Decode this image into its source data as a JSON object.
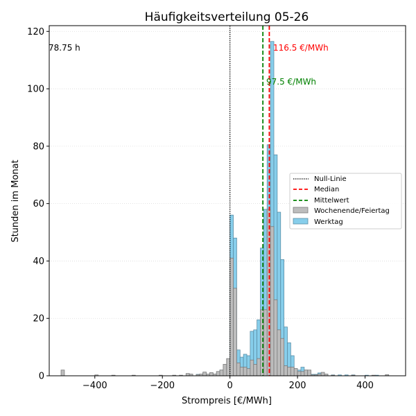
{
  "chart_data": {
    "type": "bar",
    "title": "Häufigkeitsverteilung 05-26",
    "xlabel": "Strompreis [€/MWh]",
    "ylabel": "Stunden im Monat",
    "xlim": [
      -535,
      520
    ],
    "ylim": [
      0,
      122
    ],
    "xticks": [
      -400,
      -200,
      0,
      200,
      400
    ],
    "yticks": [
      0,
      20,
      40,
      60,
      80,
      100,
      120
    ],
    "grid": "horizontal-dotted",
    "bin_width": 10,
    "stacking": "overlapping",
    "legend_position": "center-right",
    "colors": {
      "werktag": "#87ceeb",
      "wochenende": "#bdbdbd",
      "median": "#ff0000",
      "mittelwert": "#008000",
      "null_linie": "#000000"
    },
    "annotations": {
      "negative_hours": "78.75 h",
      "median_label": "116.5 €/MWh",
      "mean_label": "97.5 €/MWh"
    },
    "reference_lines": {
      "null": 0,
      "median": 116.5,
      "mean": 97.5
    },
    "legend": {
      "null_linie": "Null-Linie",
      "median": "Median",
      "mittelwert": "Mittelwert",
      "wochenende": "Wochenende/Feiertag",
      "werktag": "Werktag"
    },
    "series": [
      {
        "name": "Werktag",
        "bins": [
          [
            -130,
            0.5
          ],
          [
            -120,
            0.5
          ],
          [
            -100,
            0.5
          ],
          [
            -90,
            0.5
          ],
          [
            -80,
            1
          ],
          [
            -70,
            0.5
          ],
          [
            -60,
            1
          ],
          [
            -50,
            0.5
          ],
          [
            -40,
            1
          ],
          [
            -30,
            2
          ],
          [
            -20,
            2
          ],
          [
            -10,
            3
          ],
          [
            0,
            56
          ],
          [
            10,
            48
          ],
          [
            20,
            9
          ],
          [
            30,
            6.5
          ],
          [
            40,
            7.5
          ],
          [
            50,
            7
          ],
          [
            60,
            15.5
          ],
          [
            70,
            16
          ],
          [
            80,
            19.5
          ],
          [
            90,
            44.5
          ],
          [
            100,
            58
          ],
          [
            110,
            80.5
          ],
          [
            120,
            116.5
          ],
          [
            130,
            77
          ],
          [
            140,
            57
          ],
          [
            150,
            40.5
          ],
          [
            160,
            17
          ],
          [
            170,
            11.5
          ],
          [
            180,
            7
          ],
          [
            190,
            2.5
          ],
          [
            200,
            2
          ],
          [
            210,
            3
          ],
          [
            220,
            2
          ],
          [
            230,
            1
          ],
          [
            240,
            0.5
          ],
          [
            250,
            0.5
          ],
          [
            260,
            1
          ],
          [
            270,
            0.5
          ],
          [
            280,
            0.5
          ],
          [
            300,
            0.3
          ],
          [
            320,
            0.3
          ],
          [
            340,
            0.3
          ],
          [
            360,
            0.3
          ],
          [
            400,
            0.2
          ],
          [
            430,
            0.2
          ]
        ]
      },
      {
        "name": "Wochenende/Feiertag",
        "bins": [
          [
            -500,
            2
          ],
          [
            -400,
            0.3
          ],
          [
            -350,
            0.2
          ],
          [
            -290,
            0.2
          ],
          [
            -210,
            0.2
          ],
          [
            -170,
            0.2
          ],
          [
            -150,
            0.2
          ],
          [
            -130,
            0.8
          ],
          [
            -120,
            0.6
          ],
          [
            -100,
            0.4
          ],
          [
            -90,
            0.6
          ],
          [
            -80,
            1.3
          ],
          [
            -70,
            0.6
          ],
          [
            -60,
            1.1
          ],
          [
            -50,
            0.6
          ],
          [
            -40,
            1.5
          ],
          [
            -30,
            2
          ],
          [
            -20,
            4
          ],
          [
            -10,
            6
          ],
          [
            0,
            41
          ],
          [
            10,
            30.5
          ],
          [
            20,
            4.5
          ],
          [
            30,
            3
          ],
          [
            40,
            3
          ],
          [
            50,
            2.5
          ],
          [
            60,
            5.5
          ],
          [
            70,
            4
          ],
          [
            80,
            6
          ],
          [
            90,
            23
          ],
          [
            100,
            23
          ],
          [
            110,
            58
          ],
          [
            120,
            52
          ],
          [
            130,
            26.5
          ],
          [
            140,
            16
          ],
          [
            150,
            13
          ],
          [
            160,
            3.5
          ],
          [
            170,
            3
          ],
          [
            180,
            3
          ],
          [
            190,
            2.5
          ],
          [
            200,
            1.5
          ],
          [
            210,
            1.5
          ],
          [
            220,
            2
          ],
          [
            230,
            2
          ],
          [
            240,
            0.3
          ],
          [
            250,
            0.3
          ],
          [
            260,
            0.6
          ],
          [
            270,
            1.2
          ],
          [
            280,
            0.6
          ],
          [
            300,
            0.2
          ],
          [
            360,
            0.2
          ],
          [
            420,
            0.2
          ],
          [
            460,
            0.4
          ]
        ]
      }
    ]
  }
}
